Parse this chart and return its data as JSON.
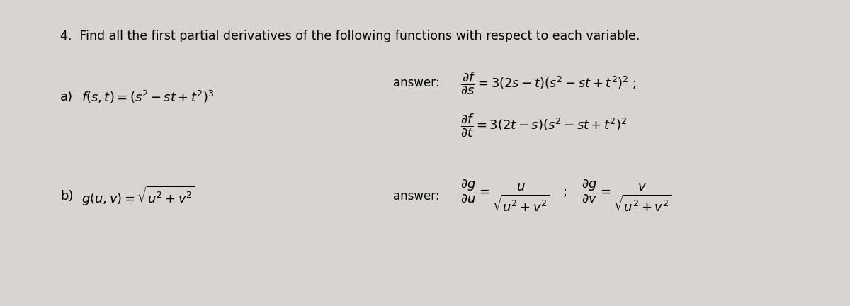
{
  "bg_color": "#d8d4d0",
  "title_text": "4.  Find all the first partial derivatives of the following functions with respect to each variable.",
  "title_fontsize": 12.5,
  "func_a": "$f(s,t)=\\left(s^2-st+t^2\\right)^3$",
  "func_a_label": "a)",
  "func_b": "$g(u,v)=\\sqrt{u^2+v^2}$",
  "func_b_label": "b)",
  "answer_label": "answer:",
  "answer_a1": "$\\dfrac{\\partial f}{\\partial s}=3(2s-t)\\left(s^2-st+t^2\\right)^2\\;$;",
  "answer_a2": "$\\dfrac{\\partial f}{\\partial t}=3(2t-s)\\left(s^2-st+t^2\\right)^2$",
  "answer_b": "$\\dfrac{\\partial g}{\\partial u}=\\dfrac{u}{\\sqrt{u^2+v^2}}\\quad;\\quad\\dfrac{\\partial g}{\\partial v}=\\dfrac{v}{\\sqrt{u^2+v^2}}$",
  "fontsize_func": 13,
  "fontsize_answer": 13,
  "fontsize_answer_label": 12,
  "fontsize_title": 12.5
}
